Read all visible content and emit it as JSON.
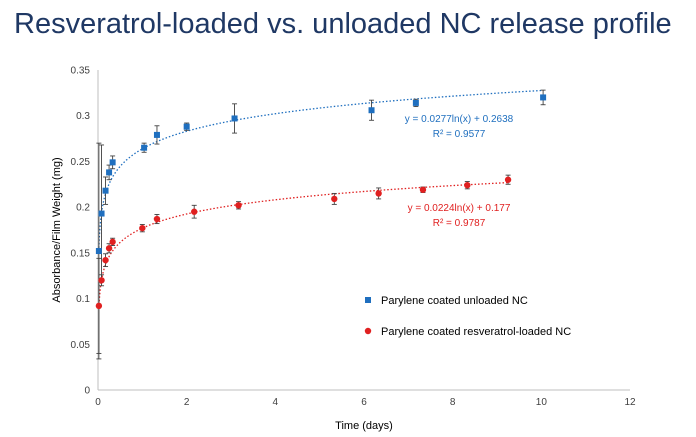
{
  "slide": {
    "title": "Resveratrol-loaded vs. unloaded NC release profile"
  },
  "chart_data": {
    "type": "scatter",
    "xlabel": "Time (days)",
    "ylabel": "Absorbance/Film Weight (mg)",
    "xlim": [
      0,
      12
    ],
    "ylim": [
      0,
      0.35
    ],
    "x_ticks": [
      "0",
      "2",
      "4",
      "6",
      "8",
      "10",
      "12"
    ],
    "y_ticks": [
      "0",
      "0.05",
      "0.1",
      "0.15",
      "0.2",
      "0.25",
      "0.3",
      "0.35"
    ],
    "grid": false,
    "legend_position": "right",
    "series": [
      {
        "name": "Parylene coated unloaded NC",
        "color": "#1f6fbf",
        "marker": "square",
        "x": [
          0.02,
          0.08,
          0.17,
          0.25,
          0.33,
          1.04,
          1.33,
          2.0,
          3.08,
          6.17,
          7.17,
          10.04
        ],
        "y": [
          0.152,
          0.193,
          0.218,
          0.238,
          0.249,
          0.265,
          0.279,
          0.288,
          0.297,
          0.306,
          0.314,
          0.32
        ],
        "err": [
          0.118,
          0.075,
          0.015,
          0.008,
          0.007,
          0.005,
          0.01,
          0.004,
          0.016,
          0.011,
          0.004,
          0.008
        ],
        "trendline": {
          "type": "log",
          "a": 0.0277,
          "b": 0.2638,
          "equation": "y = 0.0277ln(x) + 0.2638",
          "r2": "R² = 0.9577"
        }
      },
      {
        "name": "Parylene coated resveratrol-loaded NC",
        "color": "#e02020",
        "marker": "circle",
        "x": [
          0.02,
          0.08,
          0.17,
          0.25,
          0.33,
          1.0,
          1.33,
          2.17,
          3.17,
          5.33,
          6.33,
          7.33,
          8.33,
          9.25
        ],
        "y": [
          0.092,
          0.12,
          0.142,
          0.155,
          0.162,
          0.177,
          0.187,
          0.195,
          0.202,
          0.209,
          0.215,
          0.219,
          0.224,
          0.23
        ],
        "err": [
          0.052,
          0.006,
          0.007,
          0.005,
          0.004,
          0.004,
          0.005,
          0.007,
          0.004,
          0.006,
          0.006,
          0.003,
          0.004,
          0.005
        ],
        "trendline": {
          "type": "log",
          "a": 0.0224,
          "b": 0.177,
          "equation": "y = 0.0224ln(x) + 0.177",
          "r2": "R² = 0.9787"
        }
      }
    ]
  }
}
